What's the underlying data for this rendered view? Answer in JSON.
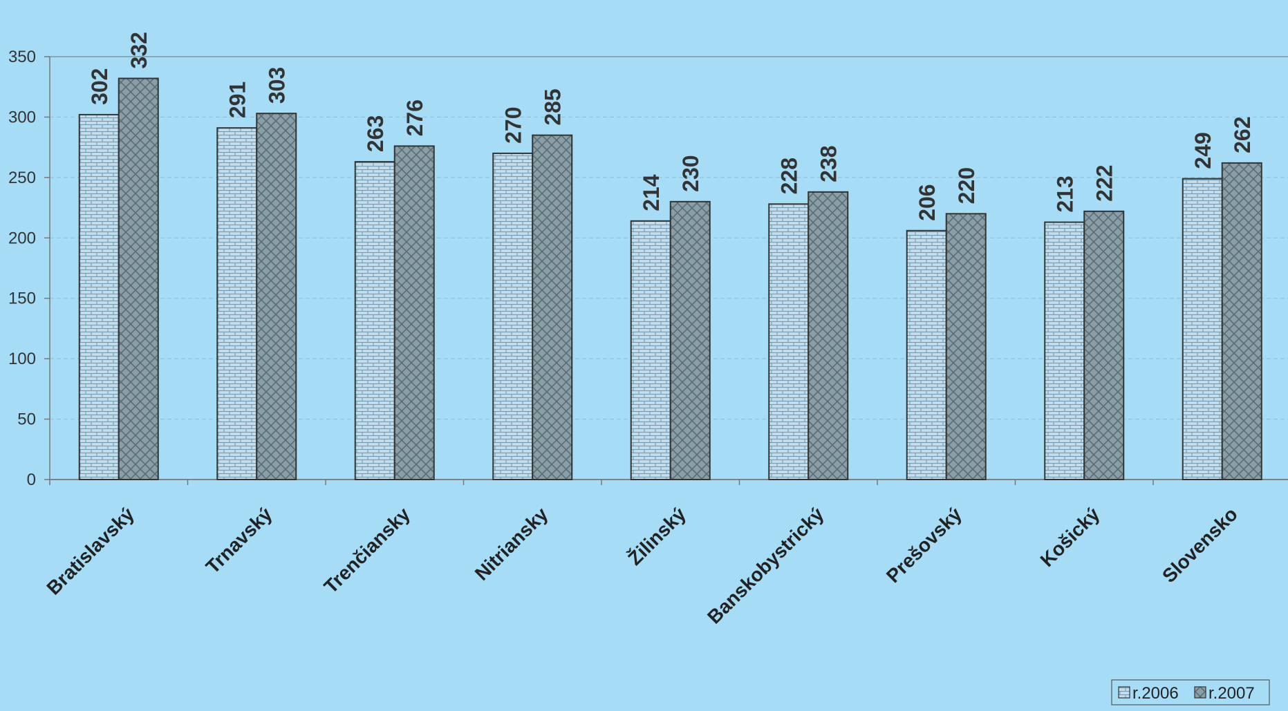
{
  "chart_data": {
    "type": "bar",
    "categories": [
      "Bratislavský",
      "Trnavský",
      "Trenčiansky",
      "Nitriansky",
      "Žilinský",
      "Banskobystrický",
      "Prešovský",
      "Košický",
      "Slovensko"
    ],
    "series": [
      {
        "name": "r.2006",
        "values": [
          302,
          291,
          263,
          270,
          214,
          228,
          206,
          213,
          249
        ],
        "color": "#c2dcec",
        "pattern": "brick"
      },
      {
        "name": "r.2007",
        "values": [
          332,
          303,
          276,
          285,
          230,
          238,
          220,
          222,
          262
        ],
        "color": "#8a9ea6",
        "pattern": "crosshatch"
      }
    ],
    "yticks": [
      0,
      50,
      100,
      150,
      200,
      250,
      300,
      350
    ],
    "ylim": [
      0,
      350
    ],
    "grid": true,
    "data_labels": true,
    "legend_position": "bottom-right",
    "title": "",
    "xlabel": "",
    "ylabel": ""
  }
}
